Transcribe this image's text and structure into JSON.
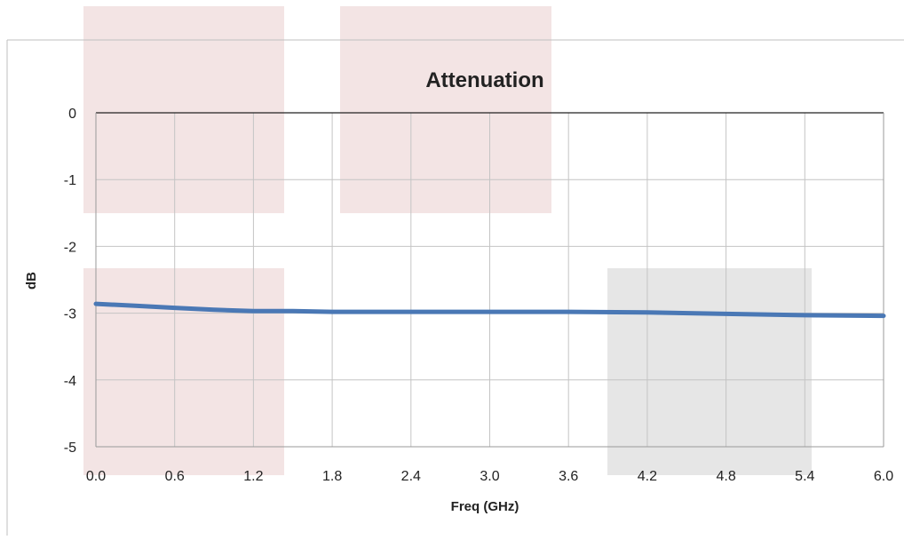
{
  "chart_data": {
    "type": "line",
    "title": "Attenuation",
    "xlabel": "Freq (GHz)",
    "ylabel": "dB",
    "xlim": [
      0,
      6
    ],
    "ylim": [
      -5,
      0
    ],
    "x_ticks": [
      "0.0",
      "0.6",
      "1.2",
      "1.8",
      "2.4",
      "3.0",
      "3.6",
      "4.2",
      "4.8",
      "5.4",
      "6.0"
    ],
    "y_ticks": [
      "0",
      "-1",
      "-2",
      "-3",
      "-4",
      "-5"
    ],
    "x_tick_values": [
      0,
      0.6,
      1.2,
      1.8,
      2.4,
      3.0,
      3.6,
      4.2,
      4.8,
      5.4,
      6.0
    ],
    "y_tick_values": [
      0,
      -1,
      -2,
      -3,
      -4,
      -5
    ],
    "grid": true,
    "legend": "none",
    "series": [
      {
        "color": "#4a78b5",
        "x": [
          0.0,
          0.3,
          0.6,
          0.9,
          1.2,
          1.5,
          1.8,
          2.4,
          3.0,
          3.6,
          4.2,
          4.8,
          5.4,
          6.0
        ],
        "y": [
          -2.86,
          -2.89,
          -2.92,
          -2.95,
          -2.97,
          -2.97,
          -2.98,
          -2.98,
          -2.98,
          -2.98,
          -2.99,
          -3.01,
          -3.03,
          -3.04
        ]
      }
    ]
  }
}
